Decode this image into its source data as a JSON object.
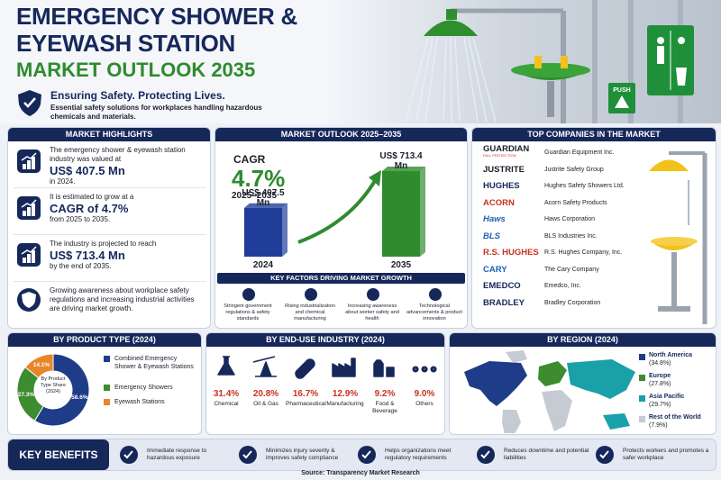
{
  "header": {
    "title_line1": "EMERGENCY SHOWER &",
    "title_line2": "EYEWASH STATION",
    "title_line3": "MARKET OUTLOOK 2035",
    "tagline": "Ensuring Safety. Protecting Lives.",
    "description": "Essential safety solutions for workplaces handling hazardous chemicals and materials.",
    "sign_label": "PUSH"
  },
  "highlights": {
    "title": "MARKET HIGHLIGHTS",
    "items": [
      {
        "text": "The emergency shower & eyewash station industry was valued at",
        "emphasis": "US$ 407.5 Mn",
        "suffix": "in 2024."
      },
      {
        "text": "It is estimated to grow at a",
        "emphasis": "CAGR of 4.7%",
        "suffix": "from 2025 to 2035."
      },
      {
        "text": "The industry is projected to reach",
        "emphasis": "US$ 713.4 Mn",
        "suffix": "by the end of 2035."
      },
      {
        "text": "Growing awareness about workplace safety regulations and increasing industrial activities are driving market growth."
      }
    ]
  },
  "outlook": {
    "title": "MARKET OUTLOOK 2025–2035",
    "cagr_label": "CAGR",
    "cagr_value": "4.7%",
    "cagr_period": "2025–2035",
    "chart": {
      "type": "bar",
      "categories": [
        "2024",
        "2035"
      ],
      "values": [
        407.5,
        713.4
      ],
      "value_labels": [
        "US$ 407.5 Mn",
        "US$ 713.4 Mn"
      ],
      "colors": [
        "#1f3d99",
        "#2e8b2e"
      ]
    },
    "key_factors": {
      "title": "KEY FACTORS DRIVING MARKET GROWTH",
      "items": [
        "Stringent government regulations & safety standards",
        "Rising industrialization and chemical manufacturing",
        "Increasing awareness about worker safety and health",
        "Technological advancements & product innovation"
      ]
    }
  },
  "companies": {
    "title": "TOP COMPANIES IN THE MARKET",
    "items": [
      {
        "logo": "GUARDIAN",
        "logo_sub": "FALL PROTECTION",
        "name": "Guardian Equipment Inc."
      },
      {
        "logo": "JUSTRITE",
        "name": "Justrite Safety Group"
      },
      {
        "logo": "HUGHES",
        "name": "Hughes Safety Showers Ltd."
      },
      {
        "logo": "ACORN",
        "name": "Acorn Safety Products"
      },
      {
        "logo": "Haws",
        "name": "Haws Corporation"
      },
      {
        "logo": "BLS",
        "name": "BLS Industries Inc."
      },
      {
        "logo": "R.S. HUGHES",
        "name": "R.S. Hughes Company, Inc."
      },
      {
        "logo": "CARY",
        "name": "The Cary Company"
      },
      {
        "logo": "EMEDCO",
        "name": "Emedco, Inc."
      },
      {
        "logo": "BRADLEY",
        "name": "Bradley Corporation"
      }
    ]
  },
  "product_type": {
    "type": "pie",
    "title": "BY PRODUCT TYPE (2024)",
    "center_label": "By Product Type Share (2024)",
    "categories": [
      "Combined Emergency Shower & Eyewash Stations",
      "Emergency Showers",
      "Eyewash Stations"
    ],
    "values": [
      58.6,
      27.3,
      14.1
    ],
    "value_labels": [
      "58.6%",
      "27.3%",
      "14.1%"
    ],
    "colors": [
      "#1f3c88",
      "#3d8c2f",
      "#e8862a"
    ]
  },
  "end_use": {
    "title": "BY END-USE INDUSTRY (2024)",
    "items": [
      {
        "share": "31.4%",
        "name": "Chemical"
      },
      {
        "share": "20.8%",
        "name": "Oil & Gas"
      },
      {
        "share": "16.7%",
        "name": "Pharmaceutical"
      },
      {
        "share": "12.9%",
        "name": "Manufacturing"
      },
      {
        "share": "9.2%",
        "name": "Food & Beverage"
      },
      {
        "share": "9.0%",
        "name": "Others"
      }
    ]
  },
  "region": {
    "title": "BY REGION (2024)",
    "items": [
      {
        "name": "North America",
        "share": "(34.8%)",
        "color": "#1f3c88"
      },
      {
        "name": "Europe",
        "share": "(27.8%)",
        "color": "#3d8c2f"
      },
      {
        "name": "Asia Pacific",
        "share": "(29.7%)",
        "color": "#1aa0a8"
      },
      {
        "name": "Rest of the World",
        "share": "(7.9%)",
        "color": "#c5cad3"
      }
    ]
  },
  "benefits": {
    "title": "KEY BENEFITS",
    "items": [
      "Immediate response to hazardous exposure",
      "Minimizes injury severity & improves safety compliance",
      "Helps organizations meet regulatory requirements",
      "Reduces downtime and potential liabilities",
      "Protects workers and promotes a safer workplace"
    ]
  },
  "source": "Source: Transparency Market Research"
}
